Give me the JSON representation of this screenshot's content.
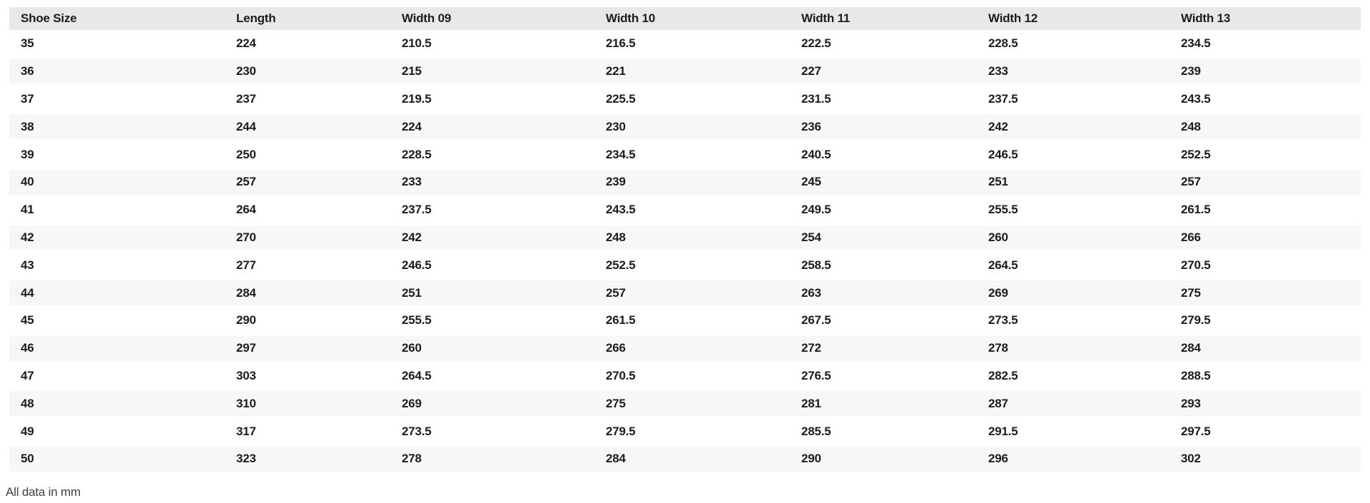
{
  "table": {
    "columns": [
      "Shoe Size",
      "Length",
      "Width 09",
      "Width 10",
      "Width 11",
      "Width 12",
      "Width 13"
    ],
    "rows": [
      [
        "35",
        "224",
        "210.5",
        "216.5",
        "222.5",
        "228.5",
        "234.5"
      ],
      [
        "36",
        "230",
        "215",
        "221",
        "227",
        "233",
        "239"
      ],
      [
        "37",
        "237",
        "219.5",
        "225.5",
        "231.5",
        "237.5",
        "243.5"
      ],
      [
        "38",
        "244",
        "224",
        "230",
        "236",
        "242",
        "248"
      ],
      [
        "39",
        "250",
        "228.5",
        "234.5",
        "240.5",
        "246.5",
        "252.5"
      ],
      [
        "40",
        "257",
        "233",
        "239",
        "245",
        "251",
        "257"
      ],
      [
        "41",
        "264",
        "237.5",
        "243.5",
        "249.5",
        "255.5",
        "261.5"
      ],
      [
        "42",
        "270",
        "242",
        "248",
        "254",
        "260",
        "266"
      ],
      [
        "43",
        "277",
        "246.5",
        "252.5",
        "258.5",
        "264.5",
        "270.5"
      ],
      [
        "44",
        "284",
        "251",
        "257",
        "263",
        "269",
        "275"
      ],
      [
        "45",
        "290",
        "255.5",
        "261.5",
        "267.5",
        "273.5",
        "279.5"
      ],
      [
        "46",
        "297",
        "260",
        "266",
        "272",
        "278",
        "284"
      ],
      [
        "47",
        "303",
        "264.5",
        "270.5",
        "276.5",
        "282.5",
        "288.5"
      ],
      [
        "48",
        "310",
        "269",
        "275",
        "281",
        "287",
        "293"
      ],
      [
        "49",
        "317",
        "273.5",
        "279.5",
        "285.5",
        "291.5",
        "297.5"
      ],
      [
        "50",
        "323",
        "278",
        "284",
        "290",
        "296",
        "302"
      ]
    ]
  },
  "footer": {
    "note": "All data in mm"
  },
  "colors": {
    "header_bg": "#e8e8e8",
    "row_alt_bg": "#f7f7f7",
    "text": "#1c1c1c"
  }
}
